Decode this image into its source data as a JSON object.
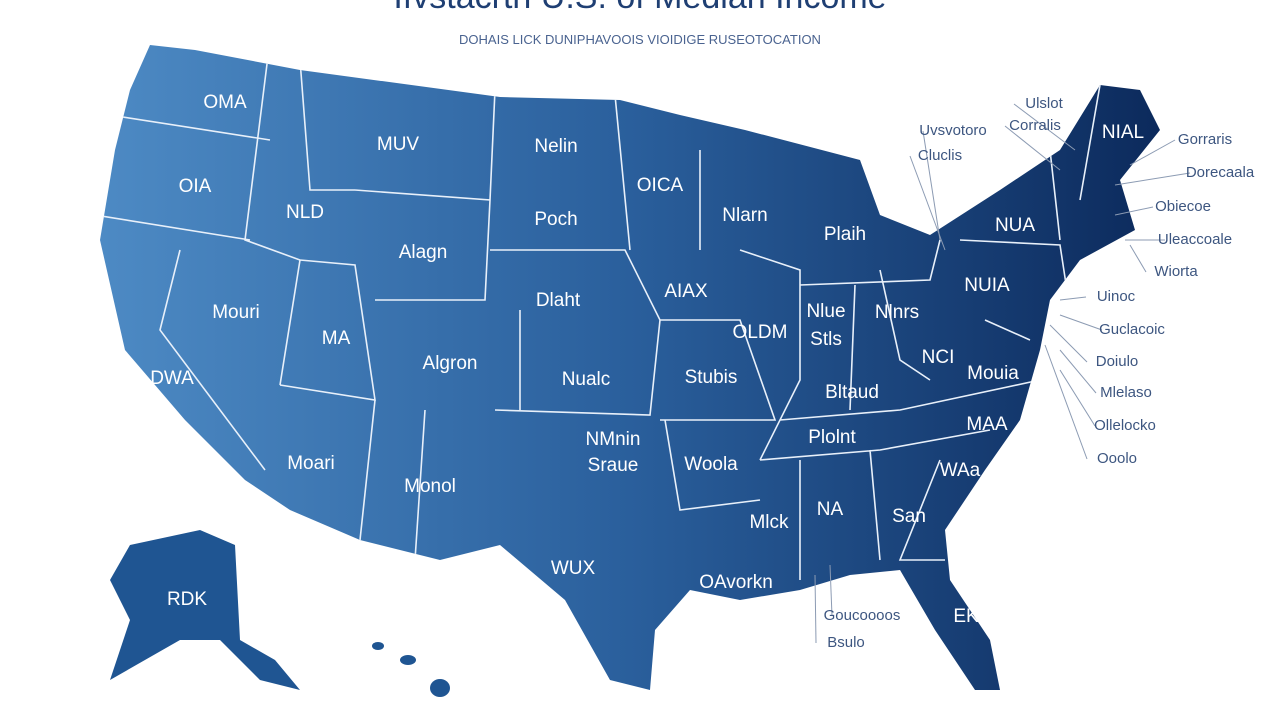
{
  "title": "Ifvstacrth U.S. of Median Income",
  "subtitle": "DOHAIS LICK DUNIPHAVOOIS VIOIDIGE RUSEOTOCATION",
  "states": [
    {
      "label": "OMA"
    },
    {
      "label": "OIA"
    },
    {
      "label": "MUV"
    },
    {
      "label": "Nelin"
    },
    {
      "label": "NLD"
    },
    {
      "label": "Alagn"
    },
    {
      "label": "Poch"
    },
    {
      "label": "OICA"
    },
    {
      "label": "Nlarn"
    },
    {
      "label": "Plaih"
    },
    {
      "label": "NUA"
    },
    {
      "label": "NIAL"
    },
    {
      "label": "Mouri"
    },
    {
      "label": "MA"
    },
    {
      "label": "Dlaht"
    },
    {
      "label": "AIAX"
    },
    {
      "label": "OLDM"
    },
    {
      "label": "Nlue"
    },
    {
      "label": "Stls"
    },
    {
      "label": "Nlnrs"
    },
    {
      "label": "NUIA"
    },
    {
      "label": "DWA"
    },
    {
      "label": "Algron"
    },
    {
      "label": "Nualc"
    },
    {
      "label": "Stubis"
    },
    {
      "label": "Bltaud"
    },
    {
      "label": "NCI"
    },
    {
      "label": "Mouia"
    },
    {
      "label": "Moari"
    },
    {
      "label": "Monol"
    },
    {
      "label": "NMnin"
    },
    {
      "label": "Sraue"
    },
    {
      "label": "Woola"
    },
    {
      "label": "Plolnt"
    },
    {
      "label": "MAA"
    },
    {
      "label": "WAa"
    },
    {
      "label": "Mlck"
    },
    {
      "label": "NA"
    },
    {
      "label": "San"
    },
    {
      "label": "WUX"
    },
    {
      "label": "OAvorkn"
    },
    {
      "label": "RDK"
    },
    {
      "label": "EK"
    }
  ],
  "callouts": [
    {
      "label": "Ulslot"
    },
    {
      "label": "Corralis"
    },
    {
      "label": "Uvsvotoro"
    },
    {
      "label": "Cluclis"
    },
    {
      "label": "Gorraris"
    },
    {
      "label": "Dorecaala"
    },
    {
      "label": "Obiecoe"
    },
    {
      "label": "Uleaccoale"
    },
    {
      "label": "Wiorta"
    },
    {
      "label": "Uinoc"
    },
    {
      "label": "Guclacoic"
    },
    {
      "label": "Doiulo"
    },
    {
      "label": "Mlelaso"
    },
    {
      "label": "Ollelocko"
    },
    {
      "label": "Ooolo"
    },
    {
      "label": "Goucoooos"
    },
    {
      "label": "Bsulo"
    }
  ]
}
